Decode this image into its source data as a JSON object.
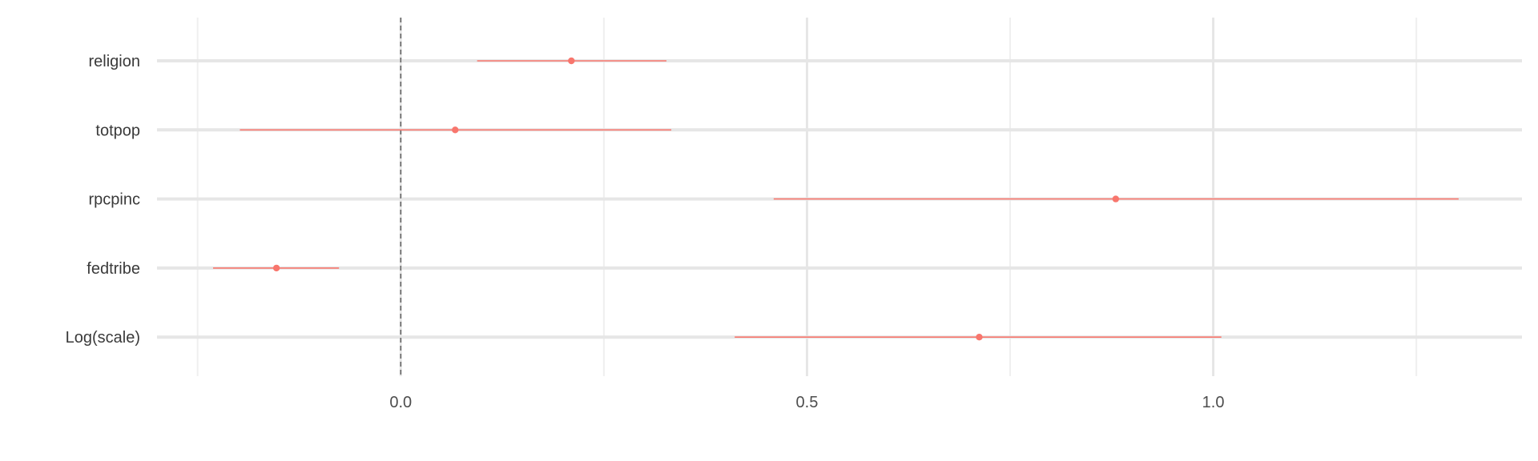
{
  "chart_data": {
    "type": "forest",
    "title": "",
    "xlabel": "",
    "ylabel": "",
    "categories": [
      "religion",
      "totpop",
      "rpcpinc",
      "fedtribe",
      "Log(scale)"
    ],
    "estimates": [
      0.21,
      0.067,
      0.88,
      -0.153,
      0.712
    ],
    "ci_low": [
      0.094,
      -0.198,
      0.459,
      -0.231,
      0.411
    ],
    "ci_high": [
      0.327,
      0.333,
      1.302,
      -0.076,
      1.01
    ],
    "x_ticks": [
      0.0,
      0.5,
      1.0
    ],
    "x_tick_labels": [
      "0.0",
      "0.5",
      "1.0"
    ],
    "xlim": [
      -0.3,
      1.38
    ],
    "reference_line": 0,
    "grid": true,
    "colors": {
      "series": "#F8766D",
      "grid_major": "#e6e6e6",
      "grid_minor": "#efefef",
      "reference": "#666666"
    }
  }
}
